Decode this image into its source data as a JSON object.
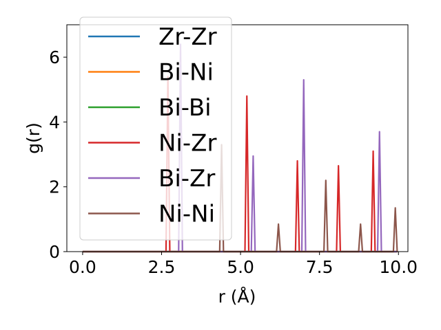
{
  "chart_data": {
    "type": "line",
    "title": "",
    "xlabel": "r (Å)",
    "ylabel": "g(r)",
    "xlim": [
      -0.5,
      10.3
    ],
    "ylim": [
      0,
      7
    ],
    "xticks": [
      0.0,
      2.5,
      5.0,
      7.5,
      10.0
    ],
    "xtick_labels": [
      "0.0",
      "2.5",
      "5.0",
      "7.5",
      "10.0"
    ],
    "yticks": [
      0,
      2,
      4,
      6
    ],
    "ytick_labels": [
      "0",
      "2",
      "4",
      "6"
    ],
    "grid": false,
    "legend_position": "upper-left",
    "series": [
      {
        "name": "Zr-Zr",
        "color": "#1f77b4",
        "peaks": []
      },
      {
        "name": "Bi-Ni",
        "color": "#ff7f0e",
        "peaks": []
      },
      {
        "name": "Bi-Bi",
        "color": "#2ca02c",
        "peaks": []
      },
      {
        "name": "Ni-Zr",
        "color": "#d62728",
        "peaks": [
          [
            2.7,
            5.4
          ],
          [
            5.2,
            4.8
          ],
          [
            6.8,
            2.8
          ],
          [
            8.1,
            2.65
          ],
          [
            9.2,
            3.1
          ]
        ]
      },
      {
        "name": "Bi-Zr",
        "color": "#9467bd",
        "peaks": [
          [
            3.1,
            6.4
          ],
          [
            5.4,
            2.95
          ],
          [
            7.0,
            5.3
          ],
          [
            9.4,
            3.7
          ]
        ]
      },
      {
        "name": "Ni-Ni",
        "color": "#8c564b",
        "peaks": [
          [
            4.4,
            3.3
          ],
          [
            6.2,
            0.85
          ],
          [
            7.7,
            2.2
          ],
          [
            8.8,
            0.85
          ],
          [
            9.9,
            1.35
          ]
        ]
      }
    ]
  }
}
